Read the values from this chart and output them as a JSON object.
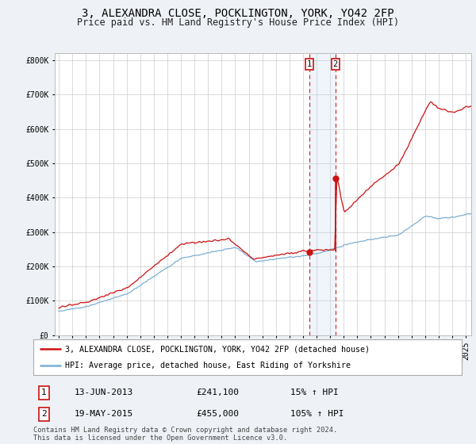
{
  "title": "3, ALEXANDRA CLOSE, POCKLINGTON, YORK, YO42 2FP",
  "subtitle": "Price paid vs. HM Land Registry's House Price Index (HPI)",
  "legend_line1": "3, ALEXANDRA CLOSE, POCKLINGTON, YORK, YO42 2FP (detached house)",
  "legend_line2": "HPI: Average price, detached house, East Riding of Yorkshire",
  "transaction1_date": "13-JUN-2013",
  "transaction1_price": "£241,100",
  "transaction1_hpi": "15% ↑ HPI",
  "transaction1_year": 2013.45,
  "transaction2_date": "19-MAY-2015",
  "transaction2_price": "£455,000",
  "transaction2_hpi": "105% ↑ HPI",
  "transaction2_year": 2015.38,
  "transaction1_value": 241100,
  "transaction2_value": 455000,
  "hpi_color": "#7bafd4",
  "price_color": "#cc1111",
  "background_color": "#eef2f7",
  "plot_bg_color": "#ffffff",
  "grid_color": "#cccccc",
  "footer_text": "Contains HM Land Registry data © Crown copyright and database right 2024.\nThis data is licensed under the Open Government Licence v3.0.",
  "ylim_max": 800000,
  "yticks": [
    0,
    100000,
    200000,
    300000,
    400000,
    500000,
    600000,
    700000,
    800000
  ],
  "ytick_labels": [
    "£0",
    "£100K",
    "£200K",
    "£300K",
    "£400K",
    "£500K",
    "£600K",
    "£700K",
    "£800K"
  ]
}
